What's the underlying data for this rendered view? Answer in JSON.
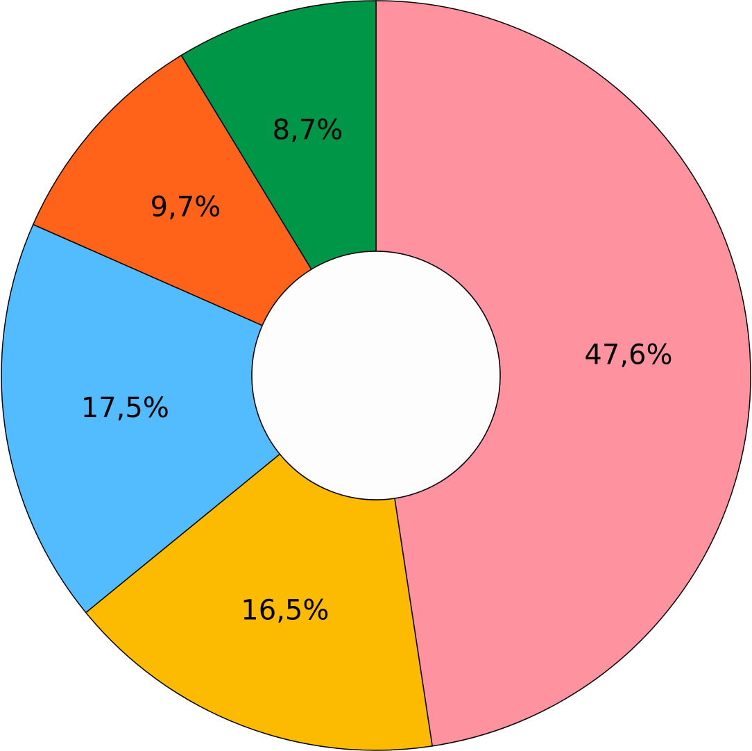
{
  "chart_data": {
    "type": "donut",
    "values": [
      47.6,
      16.5,
      17.5,
      9.7,
      8.7
    ],
    "value_labels": [
      "47,6%",
      "16,5%",
      "17,5%",
      "9,7%",
      "8,7%"
    ],
    "colors": [
      "#ff929f",
      "#fdbb00",
      "#52bcff",
      "#ff6219",
      "#009647"
    ]
  }
}
